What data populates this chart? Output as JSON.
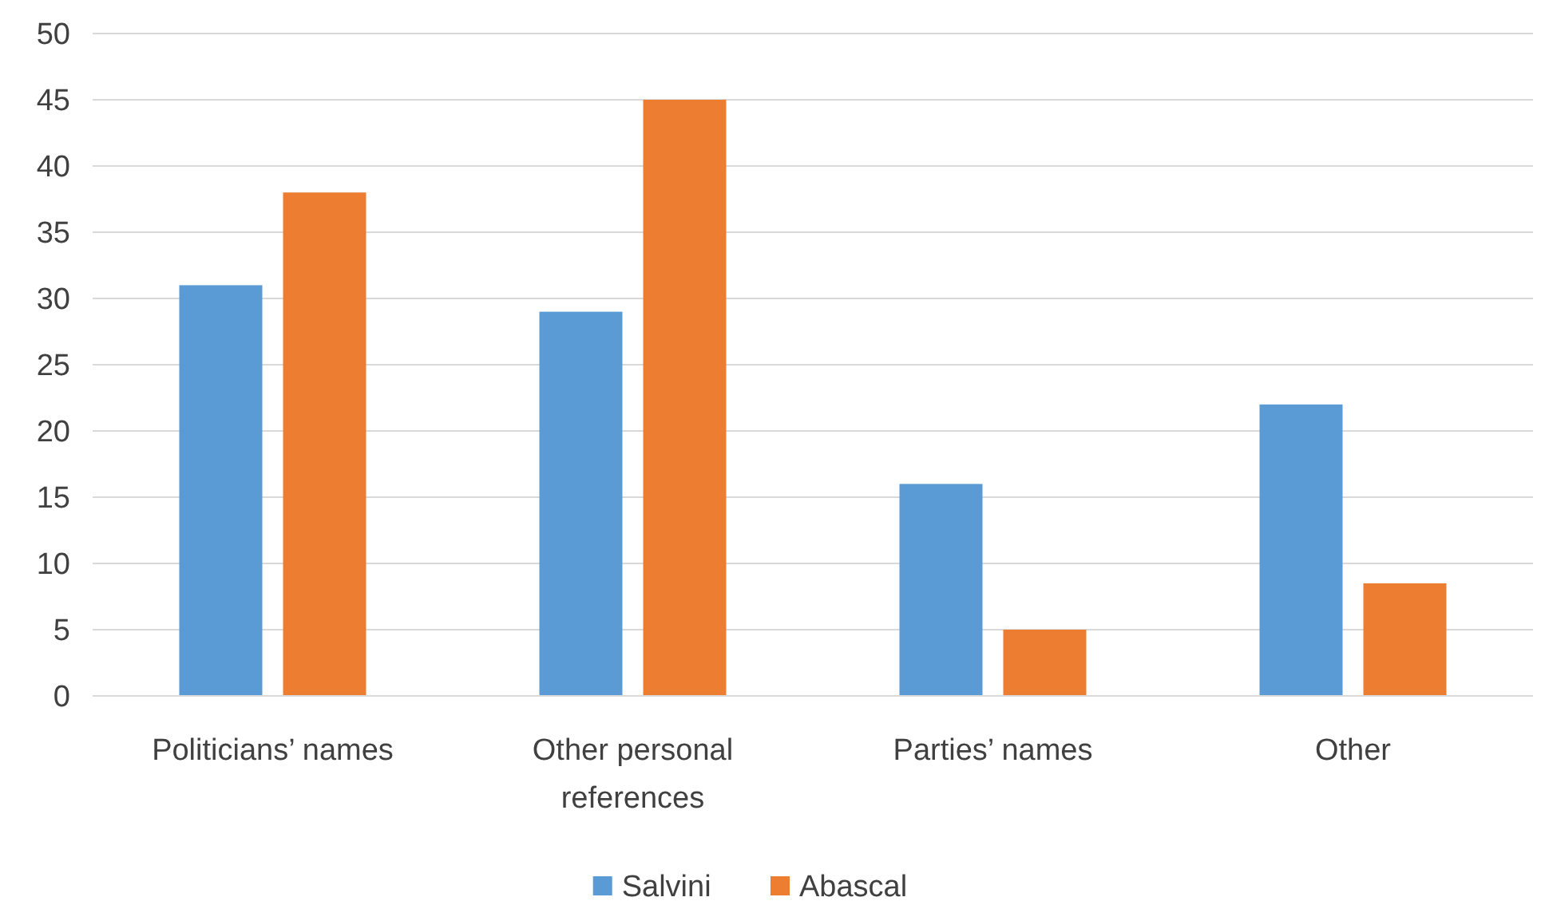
{
  "chart_data": {
    "type": "bar",
    "categories": [
      "Politicians’ names",
      "Other personal references",
      "Parties’ names",
      "Other"
    ],
    "series": [
      {
        "name": "Salvini",
        "color": "#5b9bd5",
        "values": [
          31,
          29,
          16,
          22
        ]
      },
      {
        "name": "Abascal",
        "color": "#ed7d31",
        "values": [
          38,
          45,
          5,
          8.5
        ]
      }
    ],
    "ylim": [
      0,
      50
    ],
    "yticks": [
      0,
      5,
      10,
      15,
      20,
      25,
      30,
      35,
      40,
      45,
      50
    ],
    "grid": "y",
    "legend": "bottom"
  }
}
